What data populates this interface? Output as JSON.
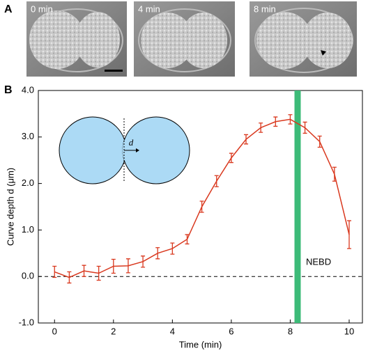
{
  "panels": {
    "a": "A",
    "b": "B"
  },
  "images": [
    "0 min",
    "4 min",
    "8 min"
  ],
  "chart_data": {
    "type": "line",
    "xlabel": "Time (min)",
    "ylabel": "Curve depth d (μm)",
    "x": [
      0,
      0.5,
      1,
      1.5,
      2,
      2.5,
      3,
      3.5,
      4,
      4.5,
      5,
      5.5,
      6,
      6.5,
      7,
      7.5,
      8,
      8.5,
      9,
      9.5,
      10
    ],
    "series": [
      {
        "color": "#d9381e",
        "values": [
          0.1,
          -0.02,
          0.12,
          0.07,
          0.22,
          0.23,
          0.32,
          0.5,
          0.6,
          0.8,
          1.5,
          2.05,
          2.55,
          2.95,
          3.2,
          3.33,
          3.38,
          3.2,
          2.9,
          2.2,
          0.9
        ],
        "errors": [
          0.12,
          0.12,
          0.12,
          0.15,
          0.15,
          0.15,
          0.12,
          0.12,
          0.12,
          0.1,
          0.12,
          0.12,
          0.1,
          0.1,
          0.1,
          0.1,
          0.1,
          0.12,
          0.12,
          0.15,
          0.3
        ]
      }
    ],
    "xlim": [
      -0.55,
      10.45
    ],
    "ylim": [
      -1,
      4
    ],
    "xticks": [
      0,
      2,
      4,
      6,
      8,
      10
    ],
    "yticks": [
      {
        "value": -1,
        "label": "-1.0"
      },
      {
        "value": 0,
        "label": "0.0"
      },
      {
        "value": 1,
        "label": "1.0"
      },
      {
        "value": 2,
        "label": "2.0"
      },
      {
        "value": 3,
        "label": "3.0"
      },
      {
        "value": 4,
        "label": "4.0"
      }
    ],
    "nebd": {
      "x": 8.25,
      "label": "NEBD",
      "color": "#3dbb78"
    },
    "inset_label": "d"
  }
}
